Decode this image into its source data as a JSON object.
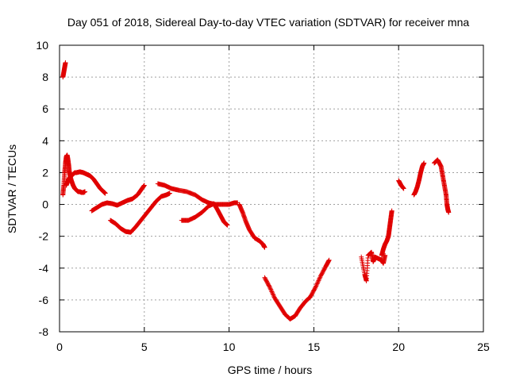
{
  "chart_data": {
    "type": "scatter",
    "title": "Day 051 of 2018, Sidereal Day-to-day VTEC variation (SDTVAR) for receiver mna",
    "xlabel": "GPS time / hours",
    "ylabel": "SDTVAR / TECUs",
    "xlim": [
      0,
      25
    ],
    "ylim": [
      -8,
      10
    ],
    "xticks": [
      0,
      5,
      10,
      15,
      20,
      25
    ],
    "yticks": [
      -8,
      -6,
      -4,
      -2,
      0,
      2,
      4,
      6,
      8,
      10
    ],
    "grid": true,
    "marker": "plus",
    "color": "#e00000",
    "series": [
      {
        "name": "s1",
        "points": [
          [
            0.2,
            8.0
          ],
          [
            0.25,
            8.3
          ],
          [
            0.3,
            8.6
          ],
          [
            0.35,
            8.9
          ]
        ]
      },
      {
        "name": "s2",
        "points": [
          [
            0.2,
            0.6
          ],
          [
            0.25,
            1.2
          ],
          [
            0.3,
            2.0
          ],
          [
            0.35,
            2.6
          ],
          [
            0.4,
            3.0
          ],
          [
            0.45,
            3.1
          ],
          [
            0.5,
            2.8
          ],
          [
            0.55,
            2.4
          ],
          [
            0.6,
            1.9
          ],
          [
            0.7,
            1.5
          ],
          [
            0.8,
            1.2
          ],
          [
            0.9,
            1.0
          ],
          [
            1.0,
            0.9
          ],
          [
            1.1,
            0.8
          ],
          [
            1.2,
            0.8
          ],
          [
            1.3,
            0.75
          ],
          [
            1.4,
            0.75
          ],
          [
            1.5,
            0.8
          ]
        ]
      },
      {
        "name": "s3",
        "points": [
          [
            0.4,
            1.2
          ],
          [
            0.5,
            1.5
          ],
          [
            0.6,
            1.7
          ],
          [
            0.7,
            1.8
          ],
          [
            0.8,
            1.9
          ],
          [
            0.9,
            2.0
          ],
          [
            1.0,
            2.0
          ],
          [
            1.2,
            2.05
          ],
          [
            1.4,
            2.0
          ],
          [
            1.6,
            1.9
          ],
          [
            1.8,
            1.8
          ],
          [
            2.0,
            1.6
          ],
          [
            2.2,
            1.3
          ],
          [
            2.4,
            1.0
          ],
          [
            2.6,
            0.8
          ],
          [
            2.7,
            0.7
          ]
        ]
      },
      {
        "name": "s4",
        "points": [
          [
            1.9,
            -0.4
          ],
          [
            2.2,
            -0.2
          ],
          [
            2.5,
            0.0
          ],
          [
            2.8,
            0.1
          ],
          [
            3.1,
            0.05
          ],
          [
            3.4,
            -0.05
          ],
          [
            3.7,
            0.1
          ],
          [
            4.0,
            0.25
          ],
          [
            4.3,
            0.35
          ],
          [
            4.6,
            0.6
          ],
          [
            4.8,
            0.9
          ],
          [
            5.0,
            1.2
          ]
        ]
      },
      {
        "name": "s5",
        "points": [
          [
            3.0,
            -1.0
          ],
          [
            3.3,
            -1.2
          ],
          [
            3.6,
            -1.5
          ],
          [
            3.9,
            -1.7
          ],
          [
            4.2,
            -1.75
          ],
          [
            4.5,
            -1.4
          ],
          [
            4.8,
            -1.0
          ],
          [
            5.1,
            -0.6
          ],
          [
            5.4,
            -0.2
          ],
          [
            5.7,
            0.2
          ],
          [
            6.0,
            0.5
          ],
          [
            6.3,
            0.6
          ],
          [
            6.5,
            0.7
          ]
        ]
      },
      {
        "name": "s6",
        "points": [
          [
            5.8,
            1.3
          ],
          [
            6.2,
            1.2
          ],
          [
            6.6,
            1.0
          ],
          [
            7.0,
            0.9
          ],
          [
            7.5,
            0.8
          ],
          [
            8.0,
            0.6
          ],
          [
            8.4,
            0.3
          ],
          [
            8.8,
            0.1
          ],
          [
            9.2,
            0.0
          ],
          [
            9.6,
            0.0
          ],
          [
            10.0,
            0.0
          ],
          [
            10.3,
            0.1
          ],
          [
            10.5,
            0.1
          ]
        ]
      },
      {
        "name": "s7",
        "points": [
          [
            7.2,
            -1.0
          ],
          [
            7.6,
            -1.0
          ],
          [
            8.0,
            -0.8
          ],
          [
            8.4,
            -0.5
          ],
          [
            8.8,
            -0.1
          ],
          [
            9.1,
            0.05
          ],
          [
            9.3,
            -0.3
          ],
          [
            9.5,
            -0.7
          ],
          [
            9.7,
            -1.1
          ],
          [
            9.9,
            -1.3
          ]
        ]
      },
      {
        "name": "s8",
        "points": [
          [
            10.6,
            0.0
          ],
          [
            10.8,
            -0.5
          ],
          [
            11.0,
            -1.1
          ],
          [
            11.2,
            -1.6
          ],
          [
            11.5,
            -2.1
          ],
          [
            11.8,
            -2.3
          ],
          [
            12.0,
            -2.5
          ],
          [
            12.1,
            -2.7
          ]
        ]
      },
      {
        "name": "s9",
        "points": [
          [
            12.1,
            -4.6
          ],
          [
            12.4,
            -5.2
          ],
          [
            12.7,
            -5.9
          ],
          [
            13.0,
            -6.4
          ],
          [
            13.3,
            -6.9
          ],
          [
            13.6,
            -7.2
          ],
          [
            13.9,
            -7.0
          ],
          [
            14.2,
            -6.5
          ],
          [
            14.5,
            -6.1
          ],
          [
            14.8,
            -5.8
          ],
          [
            15.1,
            -5.2
          ],
          [
            15.4,
            -4.5
          ],
          [
            15.7,
            -3.9
          ],
          [
            15.9,
            -3.5
          ]
        ]
      },
      {
        "name": "s10",
        "points": [
          [
            17.8,
            -3.3
          ],
          [
            18.0,
            -4.4
          ],
          [
            18.1,
            -4.8
          ],
          [
            18.2,
            -3.2
          ],
          [
            18.4,
            -3.0
          ],
          [
            18.5,
            -3.6
          ],
          [
            18.6,
            -3.3
          ],
          [
            18.8,
            -3.4
          ],
          [
            19.0,
            -3.5
          ],
          [
            19.1,
            -3.7
          ],
          [
            19.2,
            -3.2
          ]
        ]
      },
      {
        "name": "s11",
        "points": [
          [
            19.0,
            -3.2
          ],
          [
            19.1,
            -2.8
          ],
          [
            19.2,
            -2.5
          ],
          [
            19.3,
            -2.3
          ],
          [
            19.4,
            -2.0
          ],
          [
            19.45,
            -1.6
          ],
          [
            19.5,
            -1.2
          ],
          [
            19.55,
            -0.8
          ],
          [
            19.6,
            -0.4
          ]
        ]
      },
      {
        "name": "s12",
        "points": [
          [
            20.0,
            1.5
          ],
          [
            20.15,
            1.2
          ],
          [
            20.3,
            1.0
          ]
        ]
      },
      {
        "name": "s13",
        "points": [
          [
            20.9,
            0.6
          ],
          [
            21.0,
            0.8
          ],
          [
            21.1,
            1.1
          ],
          [
            21.2,
            1.5
          ],
          [
            21.3,
            2.0
          ],
          [
            21.4,
            2.4
          ],
          [
            21.5,
            2.6
          ]
        ]
      },
      {
        "name": "s14",
        "points": [
          [
            22.1,
            2.6
          ],
          [
            22.3,
            2.8
          ],
          [
            22.5,
            2.4
          ],
          [
            22.6,
            1.8
          ],
          [
            22.7,
            1.2
          ],
          [
            22.8,
            0.6
          ],
          [
            22.85,
            0.0
          ],
          [
            22.9,
            -0.3
          ],
          [
            22.95,
            -0.5
          ]
        ]
      }
    ]
  }
}
